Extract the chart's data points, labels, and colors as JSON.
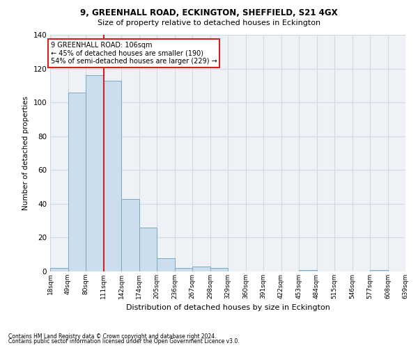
{
  "title_line1": "9, GREENHALL ROAD, ECKINGTON, SHEFFIELD, S21 4GX",
  "title_line2": "Size of property relative to detached houses in Eckington",
  "xlabel": "Distribution of detached houses by size in Eckington",
  "ylabel": "Number of detached properties",
  "bin_labels": [
    "18sqm",
    "49sqm",
    "80sqm",
    "111sqm",
    "142sqm",
    "174sqm",
    "205sqm",
    "236sqm",
    "267sqm",
    "298sqm",
    "329sqm",
    "360sqm",
    "391sqm",
    "422sqm",
    "453sqm",
    "484sqm",
    "515sqm",
    "546sqm",
    "577sqm",
    "608sqm",
    "639sqm"
  ],
  "bar_heights": [
    2,
    106,
    116,
    113,
    43,
    26,
    8,
    2,
    3,
    2,
    0,
    0,
    0,
    0,
    1,
    0,
    0,
    0,
    1,
    0
  ],
  "bar_color": "#ccdded",
  "bar_edge_color": "#7aaabf",
  "grid_color": "#d0d8e0",
  "background_color": "#eef2f7",
  "annotation_box_color": "#ffffff",
  "annotation_border_color": "#cc2222",
  "property_line_color": "#cc2222",
  "annotation_line1": "9 GREENHALL ROAD: 106sqm",
  "annotation_line2": "← 45% of detached houses are smaller (190)",
  "annotation_line3": "54% of semi-detached houses are larger (229) →",
  "ylim": [
    0,
    140
  ],
  "yticks": [
    0,
    20,
    40,
    60,
    80,
    100,
    120,
    140
  ],
  "footnote1": "Contains HM Land Registry data © Crown copyright and database right 2024.",
  "footnote2": "Contains public sector information licensed under the Open Government Licence v3.0."
}
